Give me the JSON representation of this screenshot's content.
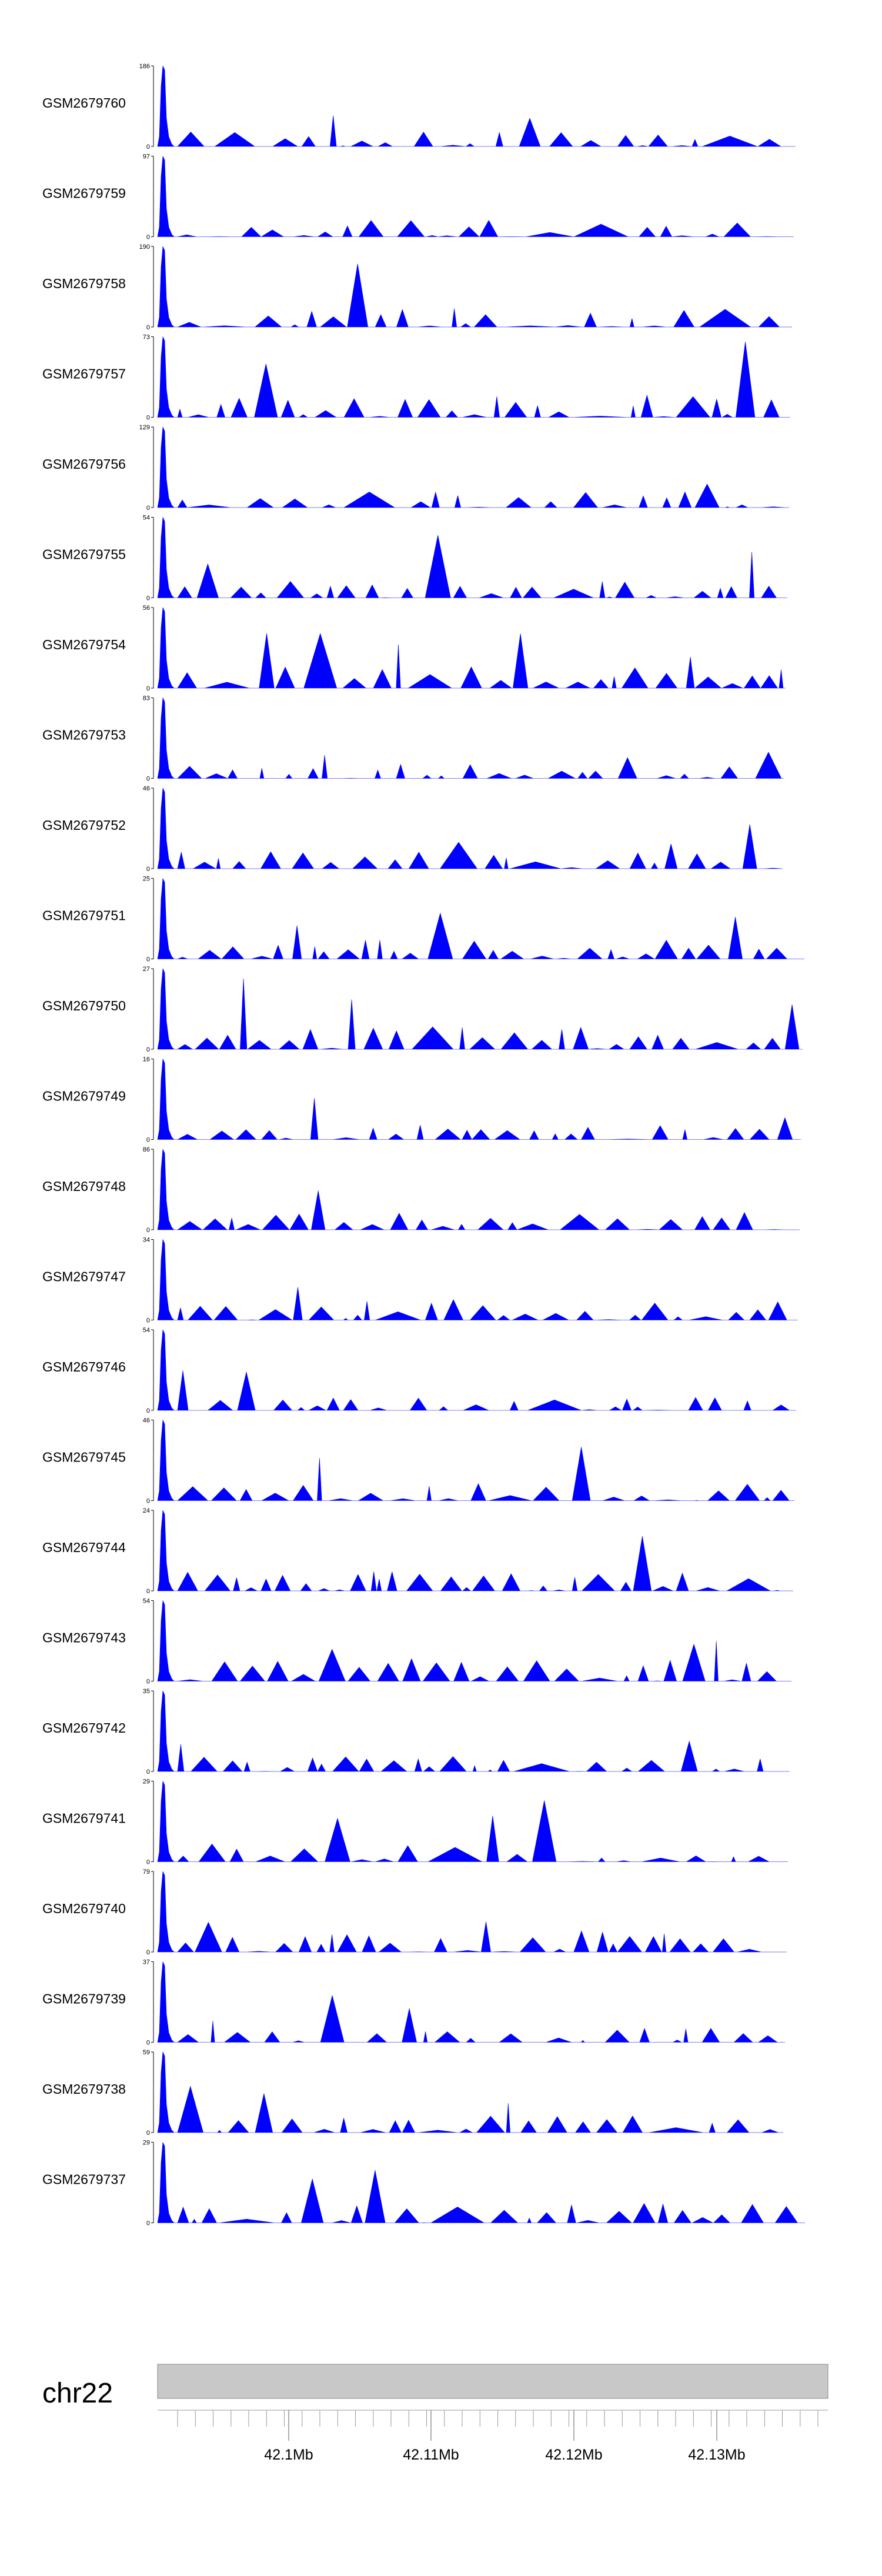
{
  "chart_data": {
    "type": "area",
    "fill_color": "#0000ff",
    "axis_color": "#000000",
    "ideogram_color": "#c8c8c8",
    "chromosome": "chr22",
    "genome_axis": {
      "tick_labels": [
        "42.1Mb",
        "42.11Mb",
        "42.12Mb",
        "42.13Mb"
      ]
    },
    "tracks": [
      {
        "name": "GSM2679760",
        "ymax": 186,
        "ylim": [
          0,
          186
        ]
      },
      {
        "name": "GSM2679759",
        "ymax": 97,
        "ylim": [
          0,
          97
        ]
      },
      {
        "name": "GSM2679758",
        "ymax": 190,
        "ylim": [
          0,
          190
        ]
      },
      {
        "name": "GSM2679757",
        "ymax": 73,
        "ylim": [
          0,
          73
        ]
      },
      {
        "name": "GSM2679756",
        "ymax": 129,
        "ylim": [
          0,
          129
        ]
      },
      {
        "name": "GSM2679755",
        "ymax": 54,
        "ylim": [
          0,
          54
        ]
      },
      {
        "name": "GSM2679754",
        "ymax": 56,
        "ylim": [
          0,
          56
        ]
      },
      {
        "name": "GSM2679753",
        "ymax": 83,
        "ylim": [
          0,
          83
        ]
      },
      {
        "name": "GSM2679752",
        "ymax": 46,
        "ylim": [
          0,
          46
        ]
      },
      {
        "name": "GSM2679751",
        "ymax": 25,
        "ylim": [
          0,
          25
        ]
      },
      {
        "name": "GSM2679750",
        "ymax": 27,
        "ylim": [
          0,
          27
        ]
      },
      {
        "name": "GSM2679749",
        "ymax": 16,
        "ylim": [
          0,
          16
        ]
      },
      {
        "name": "GSM2679748",
        "ymax": 86,
        "ylim": [
          0,
          86
        ]
      },
      {
        "name": "GSM2679747",
        "ymax": 34,
        "ylim": [
          0,
          34
        ]
      },
      {
        "name": "GSM2679746",
        "ymax": 54,
        "ylim": [
          0,
          54
        ]
      },
      {
        "name": "GSM2679745",
        "ymax": 46,
        "ylim": [
          0,
          46
        ]
      },
      {
        "name": "GSM2679744",
        "ymax": 24,
        "ylim": [
          0,
          24
        ]
      },
      {
        "name": "GSM2679743",
        "ymax": 54,
        "ylim": [
          0,
          54
        ]
      },
      {
        "name": "GSM2679742",
        "ymax": 35,
        "ylim": [
          0,
          35
        ]
      },
      {
        "name": "GSM2679741",
        "ymax": 29,
        "ylim": [
          0,
          29
        ]
      },
      {
        "name": "GSM2679740",
        "ymax": 79,
        "ylim": [
          0,
          79
        ]
      },
      {
        "name": "GSM2679739",
        "ymax": 37,
        "ylim": [
          0,
          37
        ]
      },
      {
        "name": "GSM2679738",
        "ymax": 59,
        "ylim": [
          0,
          59
        ]
      },
      {
        "name": "GSM2679737",
        "ymax": 29,
        "ylim": [
          0,
          29
        ]
      }
    ]
  }
}
